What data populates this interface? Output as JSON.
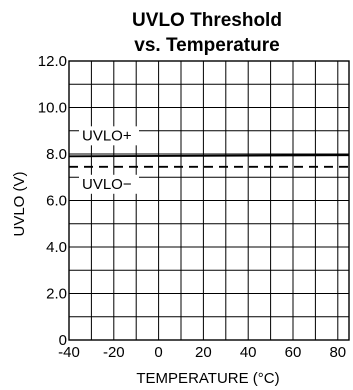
{
  "chart_data": {
    "type": "line",
    "title_lines": [
      "UVLO Threshold",
      "vs. Temperature"
    ],
    "xlabel": "TEMPERATURE (°C)",
    "ylabel": "UVLO (V)",
    "xlim": [
      -40,
      85
    ],
    "ylim": [
      0,
      12
    ],
    "xticks": [
      -40,
      -20,
      0,
      20,
      40,
      60,
      80
    ],
    "xtick_labels": [
      "-40",
      "-20",
      "0",
      "20",
      "40",
      "60",
      "80"
    ],
    "yticks": [
      0,
      2,
      4,
      6,
      8,
      10,
      12
    ],
    "ytick_labels": [
      "0",
      "2.0",
      "4.0",
      "6.0",
      "8.0",
      "10.0",
      "12.0"
    ],
    "grid": true,
    "series": [
      {
        "name": "UVLO+",
        "style": "solid",
        "x": [
          -40,
          85
        ],
        "y": [
          7.9,
          7.95
        ]
      },
      {
        "name": "UVLO−",
        "style": "dashed",
        "x": [
          -40,
          85
        ],
        "y": [
          7.45,
          7.45
        ]
      }
    ],
    "colors": {
      "line": "#000000",
      "grid": "#000000"
    }
  }
}
